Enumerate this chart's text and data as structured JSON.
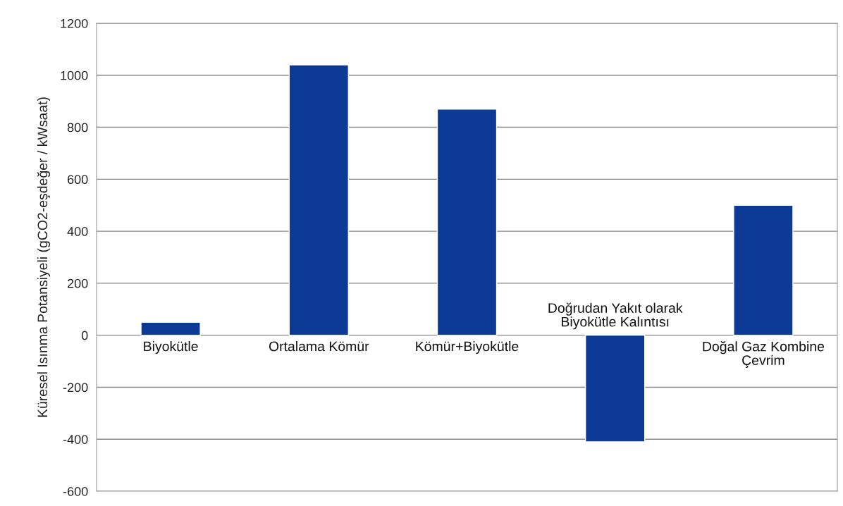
{
  "chart_data": {
    "type": "bar",
    "categories": [
      "Biyokütle",
      "Ortalama Kömür",
      "Kömür+Biyokütle",
      "Doğrudan Yakıt olarak\nBiyokütle Kalıntısı",
      "Doğal Gaz Kombine\nÇevrim"
    ],
    "values": [
      50,
      1040,
      870,
      -410,
      500
    ],
    "color": "#0d3a94",
    "ylabel": "Küresel Isınma Potansiyeli (gCO2-eşdeğer / kWsaat)",
    "ylim": [
      -600,
      1200
    ],
    "yticks": [
      -600,
      -400,
      -200,
      0,
      200,
      400,
      600,
      800,
      1000,
      1200
    ],
    "grid": "y"
  }
}
